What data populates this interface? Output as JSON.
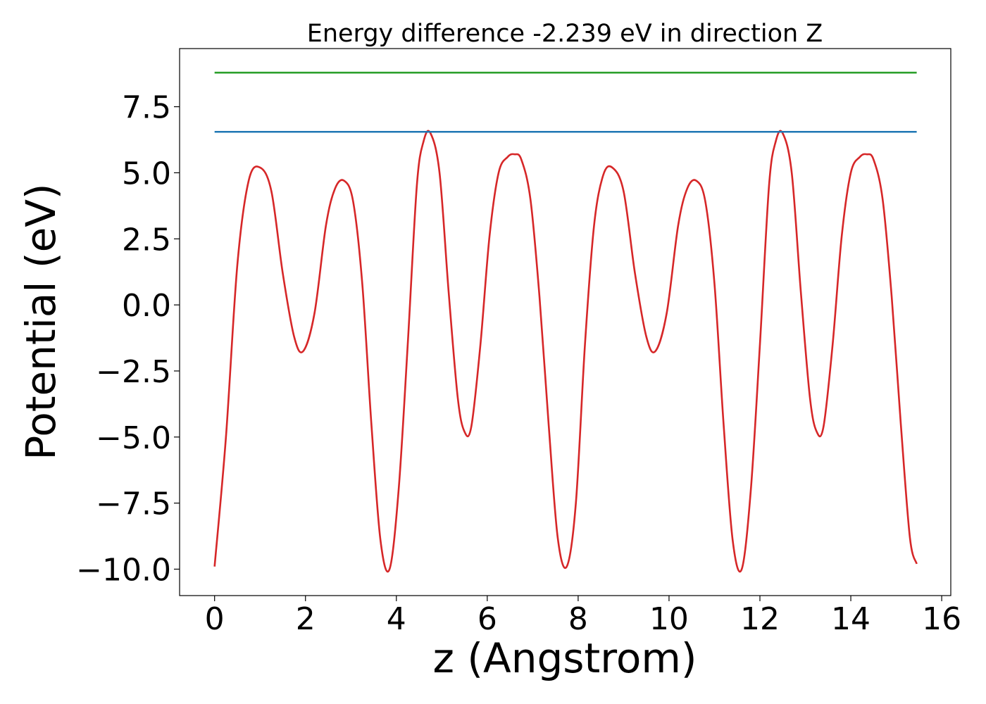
{
  "chart_data": {
    "type": "line",
    "title": "Energy difference -2.239 eV in direction Z",
    "xlabel": "z (Angstrom)",
    "ylabel": "Potential (eV)",
    "xlim": [
      -0.77,
      16.2
    ],
    "ylim": [
      -11.0,
      9.7
    ],
    "xticks": [
      0,
      2,
      4,
      6,
      8,
      10,
      12,
      14,
      16
    ],
    "xtick_labels": [
      "0",
      "2",
      "4",
      "6",
      "8",
      "10",
      "12",
      "14",
      "16"
    ],
    "yticks": [
      -10.0,
      -7.5,
      -5.0,
      -2.5,
      0.0,
      2.5,
      5.0,
      7.5
    ],
    "ytick_labels": [
      "−10.0",
      "−7.5",
      "−5.0",
      "−2.5",
      "0.0",
      "2.5",
      "5.0",
      "7.5"
    ],
    "grid": false,
    "series": [
      {
        "color": "#d62728",
        "x": [
          0.0,
          0.25,
          0.5,
          0.75,
          1.0,
          1.25,
          1.5,
          1.75,
          1.95,
          2.2,
          2.45,
          2.65,
          2.85,
          3.05,
          3.25,
          3.45,
          3.65,
          3.85,
          4.05,
          4.25,
          4.45,
          4.6,
          4.75,
          4.95,
          5.15,
          5.35,
          5.5,
          5.65,
          5.85,
          6.05,
          6.25,
          6.45,
          6.6,
          6.75,
          6.95,
          7.15,
          7.35,
          7.55,
          7.75,
          7.95,
          8.15,
          8.35,
          8.55,
          8.75,
          9.0,
          9.25,
          9.5,
          9.7,
          9.95,
          10.2,
          10.4,
          10.6,
          10.8,
          11.0,
          11.2,
          11.4,
          11.6,
          11.8,
          12.0,
          12.2,
          12.35,
          12.5,
          12.7,
          12.9,
          13.1,
          13.25,
          13.4,
          13.6,
          13.8,
          14.0,
          14.2,
          14.35,
          14.5,
          14.7,
          14.9,
          15.1,
          15.3,
          15.45
        ],
        "y": [
          -9.9,
          -5.0,
          1.5,
          4.7,
          5.2,
          4.3,
          1.2,
          -1.2,
          -1.75,
          -0.3,
          3.0,
          4.4,
          4.7,
          3.9,
          0.8,
          -4.5,
          -8.9,
          -10.0,
          -7.0,
          -1.5,
          4.5,
          6.2,
          6.5,
          5.0,
          0.5,
          -3.5,
          -4.8,
          -4.6,
          -1.5,
          2.6,
          5.0,
          5.6,
          5.7,
          5.5,
          4.0,
          0.3,
          -4.5,
          -8.8,
          -9.9,
          -7.5,
          -1.5,
          3.0,
          4.9,
          5.2,
          4.3,
          1.2,
          -1.2,
          -1.75,
          -0.3,
          3.0,
          4.4,
          4.7,
          3.9,
          0.8,
          -4.5,
          -8.9,
          -10.0,
          -7.0,
          -1.5,
          4.5,
          6.2,
          6.5,
          5.0,
          0.5,
          -3.5,
          -4.8,
          -4.6,
          -1.5,
          2.6,
          5.0,
          5.6,
          5.7,
          5.5,
          4.0,
          0.3,
          -4.5,
          -8.8,
          -9.8
        ]
      },
      {
        "color": "#1f77b4",
        "x": [
          0.0,
          15.45
        ],
        "y": [
          6.55,
          6.55
        ]
      },
      {
        "color": "#2ca02c",
        "x": [
          0.0,
          15.45
        ],
        "y": [
          8.79,
          8.79
        ]
      }
    ]
  }
}
